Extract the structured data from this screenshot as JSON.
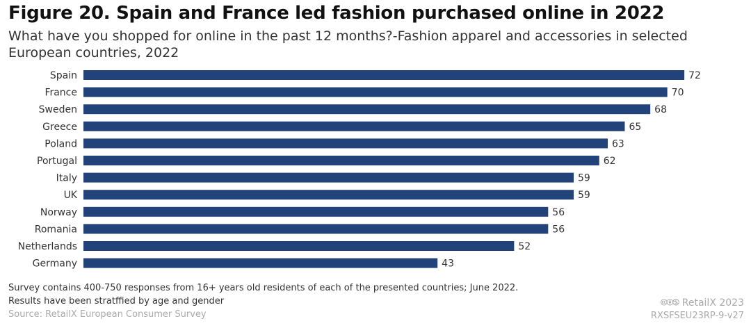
{
  "title": "Figure 20. Spain and France led fashion purchased online in 2022",
  "subtitle": "What have you shopped for online in the past 12 months?-Fashion apparel and accessories in selected European countries, 2022",
  "chart_data": {
    "type": "bar",
    "orientation": "horizontal",
    "categories": [
      "Spain",
      "France",
      "Sweden",
      "Greece",
      "Poland",
      "Portugal",
      "Italy",
      "UK",
      "Norway",
      "Romania",
      "Netherlands",
      "Germany"
    ],
    "values": [
      72,
      70,
      68,
      65,
      63,
      62,
      59,
      59,
      56,
      56,
      52,
      43
    ],
    "color": "#22427a",
    "grid": false,
    "title": "Figure 20. Spain and France led fashion purchased online in 2022"
  },
  "footer": {
    "note1": "Survey contains 400-750 responses from 16+ years old residents of each of the presented countries; June 2022.",
    "note2": "Results have been stratffied by age and gender",
    "source": "Source: RetailX European Consumer Survey",
    "copyright": "🅭🅯🄏 RetailX 2023",
    "code": "RXSFSEU23RP-9-v27"
  }
}
